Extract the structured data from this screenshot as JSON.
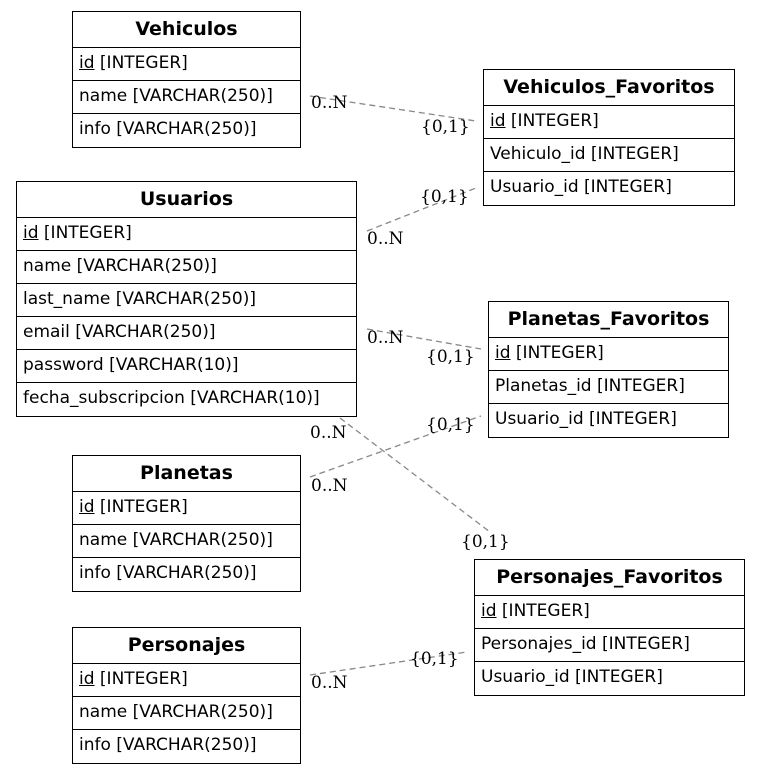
{
  "tables": [
    {
      "name": "Vehiculos",
      "pk": "id",
      "pk_type": "[INTEGER]",
      "rows": [
        "name [VARCHAR(250)]",
        "info [VARCHAR(250)]"
      ]
    },
    {
      "name": "Vehiculos_Favoritos",
      "pk": "id",
      "pk_type": "[INTEGER]",
      "rows": [
        "Vehiculo_id [INTEGER]",
        "Usuario_id [INTEGER]"
      ]
    },
    {
      "name": "Usuarios",
      "pk": "id",
      "pk_type": "[INTEGER]",
      "rows": [
        "name [VARCHAR(250)]",
        "last_name [VARCHAR(250)]",
        "email [VARCHAR(250)]",
        "password [VARCHAR(10)]",
        "fecha_subscripcion [VARCHAR(10)]"
      ]
    },
    {
      "name": "Planetas_Favoritos",
      "pk": "id",
      "pk_type": "[INTEGER]",
      "rows": [
        "Planetas_id [INTEGER]",
        "Usuario_id [INTEGER]"
      ]
    },
    {
      "name": "Planetas",
      "pk": "id",
      "pk_type": "[INTEGER]",
      "rows": [
        "name [VARCHAR(250)]",
        "info [VARCHAR(250)]"
      ]
    },
    {
      "name": "Personajes_Favoritos",
      "pk": "id",
      "pk_type": "[INTEGER]",
      "rows": [
        "Personajes_id [INTEGER]",
        "Usuario_id [INTEGER]"
      ]
    },
    {
      "name": "Personajes",
      "pk": "id",
      "pk_type": "[INTEGER]",
      "rows": [
        "name [VARCHAR(250)]",
        "info [VARCHAR(250)]"
      ]
    }
  ],
  "relations": [
    {
      "from": "Vehiculos",
      "to": "Vehiculos_Favoritos",
      "many": "0..N",
      "one": "{0,1}"
    },
    {
      "from": "Usuarios",
      "to": "Vehiculos_Favoritos",
      "many": "0..N",
      "one": "{0,1}"
    },
    {
      "from": "Usuarios",
      "to": "Planetas_Favoritos",
      "many": "0..N",
      "one": "{0,1}"
    },
    {
      "from": "Planetas",
      "to": "Planetas_Favoritos",
      "many": "0..N",
      "one": "{0,1}"
    },
    {
      "from": "Usuarios",
      "to": "Personajes_Favoritos",
      "many": "0..N",
      "one": "{0,1}"
    },
    {
      "from": "Personajes",
      "to": "Personajes_Favoritos",
      "many": "0..N",
      "one": "{0,1}"
    }
  ]
}
